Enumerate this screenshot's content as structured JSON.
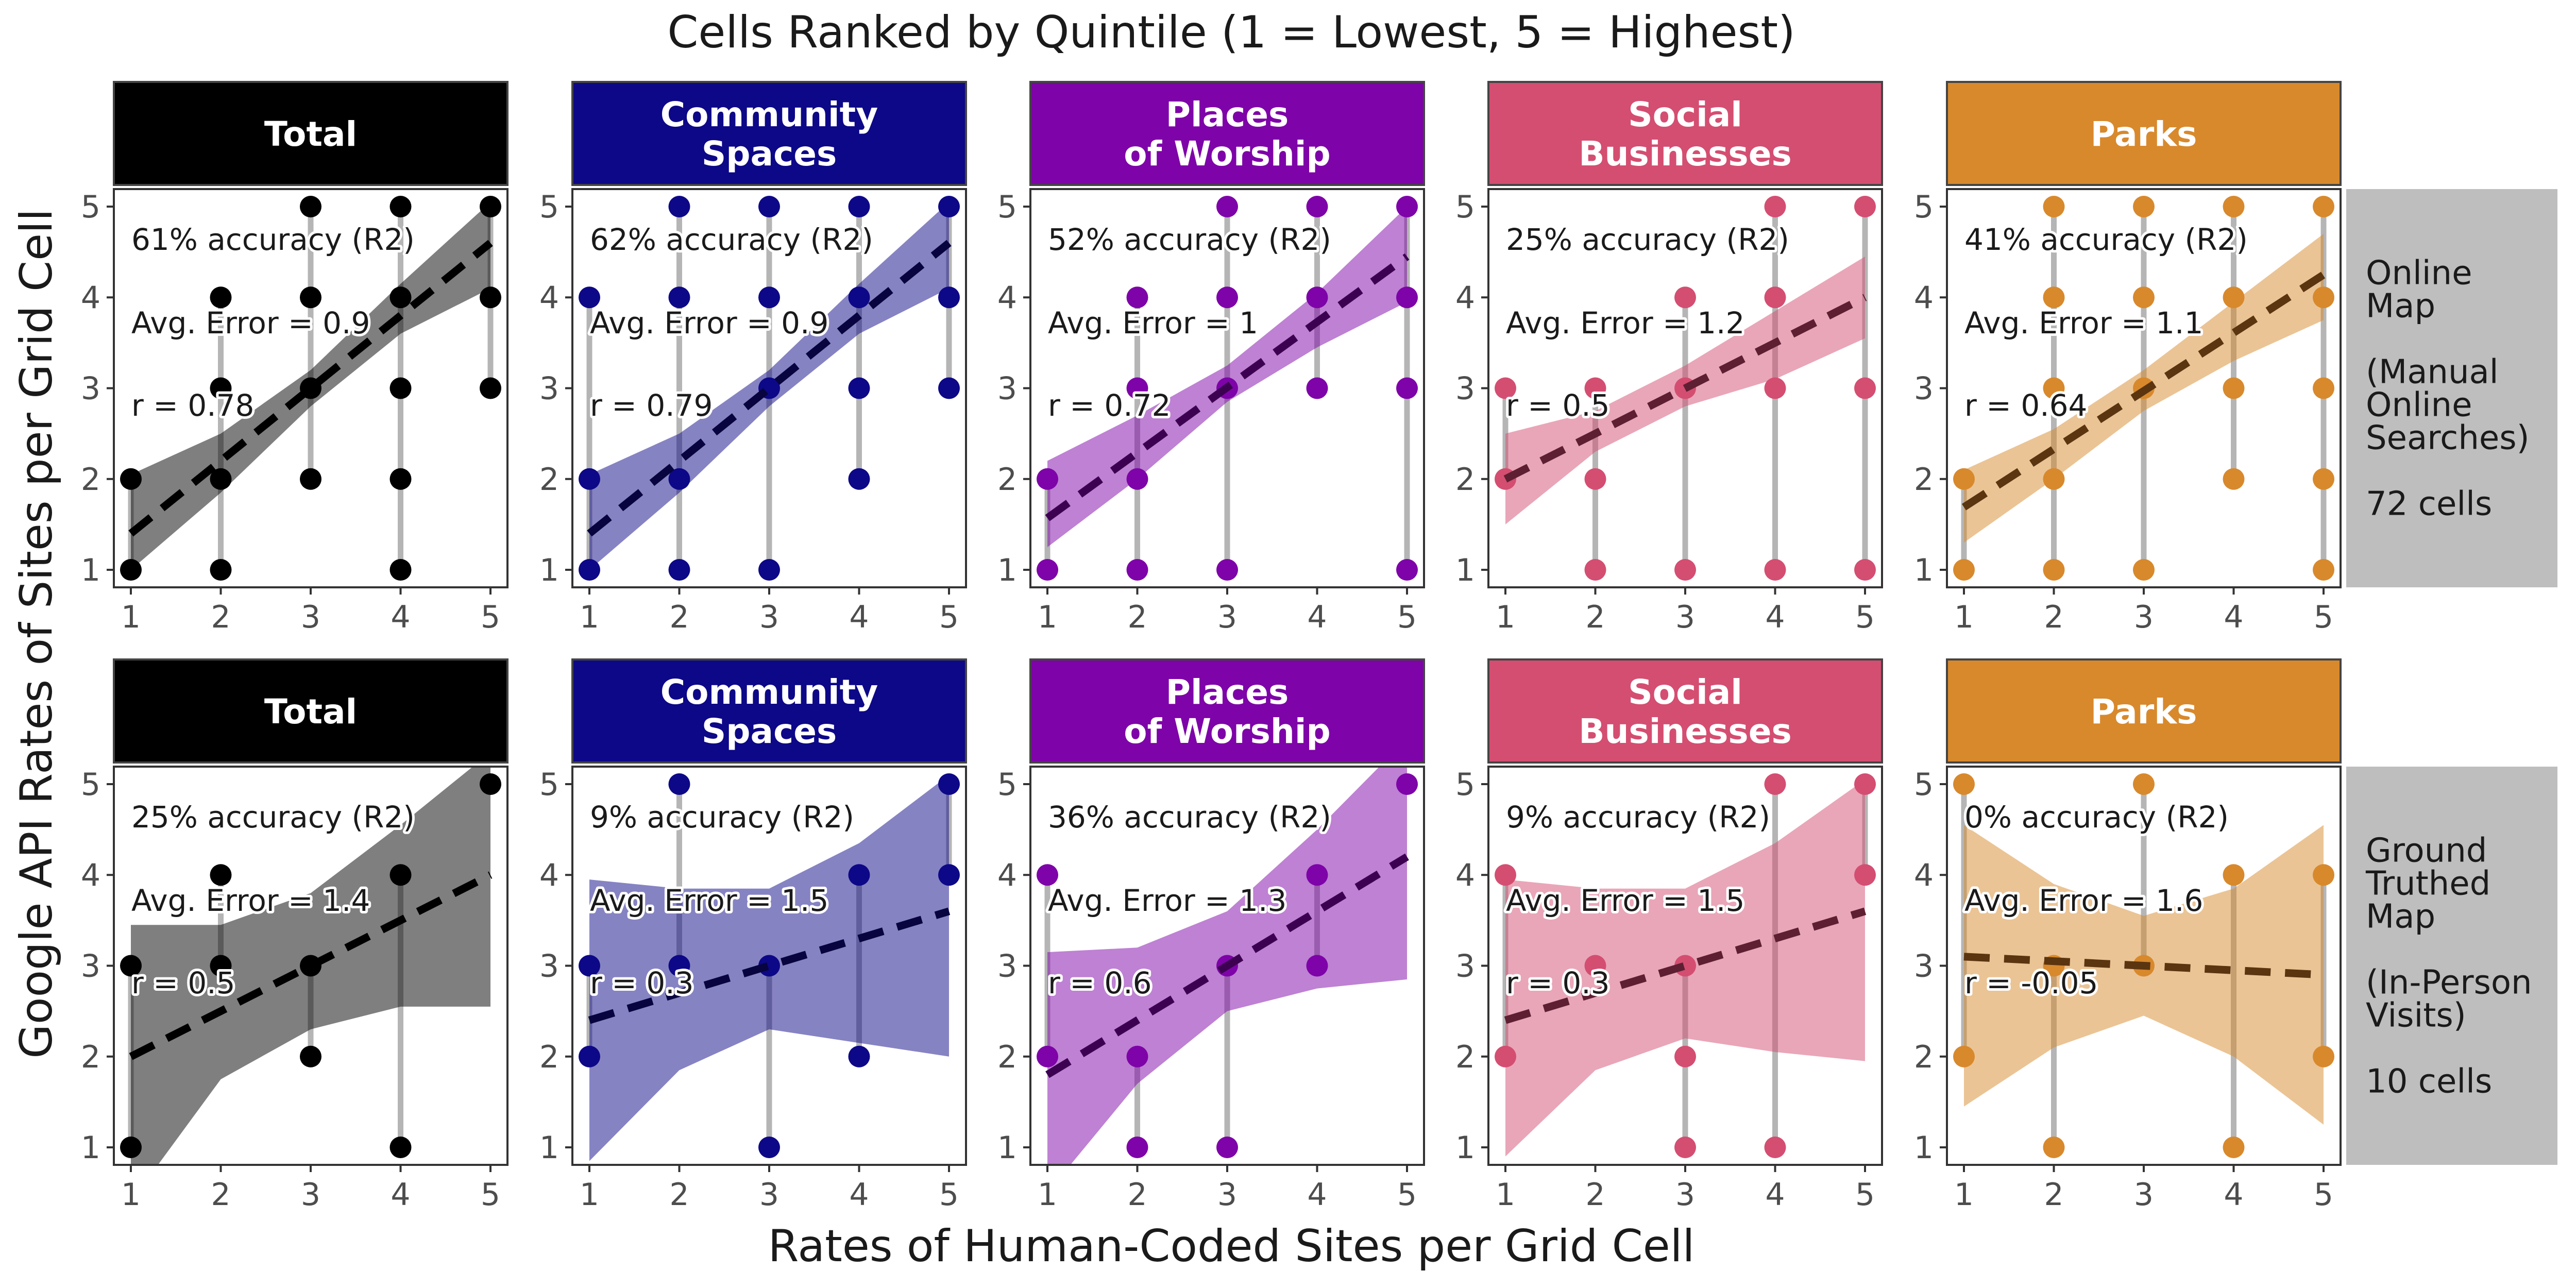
{
  "figure": {
    "title": "Cells Ranked by Quintile (1 = Lowest, 5 = Highest)",
    "xlabel": "Rates of Human-Coded Sites per Grid Cell",
    "ylabel": "Google API Rates of Sites per Grid Cell"
  },
  "colors": {
    "Total": "#000000",
    "Community Spaces": "#0d0887",
    "Places of Worship": "#7e03a8",
    "Social Businesses": "#d44e71",
    "Parks": "#d8892c"
  },
  "columns": [
    {
      "key": "Total",
      "header": [
        "Total"
      ]
    },
    {
      "key": "Community Spaces",
      "header": [
        "Community",
        "Spaces"
      ]
    },
    {
      "key": "Places of Worship",
      "header": [
        "Places",
        "of Worship"
      ]
    },
    {
      "key": "Social Businesses",
      "header": [
        "Social",
        "Businesses"
      ]
    },
    {
      "key": "Parks",
      "header": [
        "Parks"
      ]
    }
  ],
  "rows": [
    {
      "label_lines": [
        "Online",
        "Map",
        "",
        "(Manual",
        "Online",
        "Searches)",
        "",
        "72 cells"
      ]
    },
    {
      "label_lines": [
        "Ground",
        "Truthed",
        "Map",
        "",
        "(In-Person",
        "Visits)",
        "",
        "10 cells"
      ]
    }
  ],
  "chart_data": [
    {
      "type": "scatter",
      "row": 0,
      "col": 0,
      "category": "Total",
      "xlim": [
        1,
        5
      ],
      "ylim": [
        1,
        5
      ],
      "annotations": [
        "61% accuracy (R2)",
        "Avg. Error = 0.9",
        "r = 0.78"
      ],
      "points": [
        [
          1,
          1
        ],
        [
          1,
          2
        ],
        [
          2,
          1
        ],
        [
          2,
          2
        ],
        [
          2,
          3
        ],
        [
          2,
          4
        ],
        [
          3,
          2
        ],
        [
          3,
          3
        ],
        [
          3,
          4
        ],
        [
          3,
          5
        ],
        [
          4,
          1
        ],
        [
          4,
          2
        ],
        [
          4,
          3
        ],
        [
          4,
          4
        ],
        [
          4,
          5
        ],
        [
          5,
          3
        ],
        [
          5,
          4
        ],
        [
          5,
          5
        ]
      ],
      "fit": {
        "intercept": 0.6,
        "slope": 0.8
      },
      "band": {
        "lower": [
          1.0,
          1.85,
          2.8,
          3.6,
          4.1
        ],
        "upper": [
          2.05,
          2.5,
          3.2,
          4.15,
          5.05
        ]
      }
    },
    {
      "type": "scatter",
      "row": 0,
      "col": 1,
      "category": "Community Spaces",
      "xlim": [
        1,
        5
      ],
      "ylim": [
        1,
        5
      ],
      "annotations": [
        "62% accuracy (R2)",
        "Avg. Error = 0.9",
        "r = 0.79"
      ],
      "points": [
        [
          1,
          1
        ],
        [
          1,
          2
        ],
        [
          1,
          4
        ],
        [
          2,
          1
        ],
        [
          2,
          2
        ],
        [
          2,
          4
        ],
        [
          2,
          5
        ],
        [
          3,
          1
        ],
        [
          3,
          3
        ],
        [
          3,
          4
        ],
        [
          3,
          5
        ],
        [
          4,
          2
        ],
        [
          4,
          3
        ],
        [
          4,
          4
        ],
        [
          4,
          5
        ],
        [
          5,
          3
        ],
        [
          5,
          4
        ],
        [
          5,
          5
        ]
      ],
      "fit": {
        "intercept": 0.6,
        "slope": 0.8
      },
      "band": {
        "lower": [
          1.0,
          1.85,
          2.8,
          3.6,
          4.1
        ],
        "upper": [
          2.05,
          2.5,
          3.2,
          4.15,
          5.05
        ]
      }
    },
    {
      "type": "scatter",
      "row": 0,
      "col": 2,
      "category": "Places of Worship",
      "xlim": [
        1,
        5
      ],
      "ylim": [
        1,
        5
      ],
      "annotations": [
        "52% accuracy (R2)",
        "Avg. Error = 1",
        "r = 0.72"
      ],
      "points": [
        [
          1,
          1
        ],
        [
          1,
          2
        ],
        [
          2,
          1
        ],
        [
          2,
          2
        ],
        [
          2,
          3
        ],
        [
          2,
          4
        ],
        [
          3,
          1
        ],
        [
          3,
          3
        ],
        [
          3,
          4
        ],
        [
          3,
          5
        ],
        [
          4,
          3
        ],
        [
          4,
          4
        ],
        [
          4,
          5
        ],
        [
          5,
          1
        ],
        [
          5,
          3
        ],
        [
          5,
          4
        ],
        [
          5,
          5
        ]
      ],
      "fit": {
        "intercept": 0.85,
        "slope": 0.72
      },
      "band": {
        "lower": [
          1.25,
          2.0,
          2.85,
          3.45,
          3.95
        ],
        "upper": [
          2.2,
          2.7,
          3.25,
          4.05,
          5.0
        ]
      }
    },
    {
      "type": "scatter",
      "row": 0,
      "col": 3,
      "category": "Social Businesses",
      "xlim": [
        1,
        5
      ],
      "ylim": [
        1,
        5
      ],
      "annotations": [
        "25% accuracy (R2)",
        "Avg. Error = 1.2",
        "r = 0.5"
      ],
      "points": [
        [
          1,
          2
        ],
        [
          1,
          3
        ],
        [
          2,
          1
        ],
        [
          2,
          2
        ],
        [
          2,
          3
        ],
        [
          3,
          1
        ],
        [
          3,
          3
        ],
        [
          3,
          4
        ],
        [
          4,
          1
        ],
        [
          4,
          3
        ],
        [
          4,
          4
        ],
        [
          4,
          5
        ],
        [
          5,
          1
        ],
        [
          5,
          3
        ],
        [
          5,
          5
        ]
      ],
      "fit": {
        "intercept": 1.5,
        "slope": 0.5
      },
      "band": {
        "lower": [
          1.5,
          2.3,
          2.8,
          3.1,
          3.55
        ],
        "upper": [
          2.5,
          2.75,
          3.25,
          3.85,
          4.45
        ]
      }
    },
    {
      "type": "scatter",
      "row": 0,
      "col": 4,
      "category": "Parks",
      "xlim": [
        1,
        5
      ],
      "ylim": [
        1,
        5
      ],
      "annotations": [
        "41% accuracy (R2)",
        "Avg. Error = 1.1",
        "r = 0.64"
      ],
      "points": [
        [
          1,
          1
        ],
        [
          1,
          2
        ],
        [
          2,
          1
        ],
        [
          2,
          2
        ],
        [
          2,
          3
        ],
        [
          2,
          4
        ],
        [
          2,
          5
        ],
        [
          3,
          1
        ],
        [
          3,
          3
        ],
        [
          3,
          4
        ],
        [
          3,
          5
        ],
        [
          4,
          2
        ],
        [
          4,
          3
        ],
        [
          4,
          4
        ],
        [
          4,
          5
        ],
        [
          5,
          1
        ],
        [
          5,
          2
        ],
        [
          5,
          3
        ],
        [
          5,
          4
        ],
        [
          5,
          5
        ]
      ],
      "fit": {
        "intercept": 1.05,
        "slope": 0.64
      },
      "band": {
        "lower": [
          1.3,
          2.0,
          2.75,
          3.3,
          3.75
        ],
        "upper": [
          2.1,
          2.55,
          3.2,
          3.95,
          4.7
        ]
      }
    },
    {
      "type": "scatter",
      "row": 1,
      "col": 0,
      "category": "Total",
      "xlim": [
        1,
        5
      ],
      "ylim": [
        1,
        5
      ],
      "annotations": [
        "25% accuracy (R2)",
        "Avg. Error = 1.4",
        "r = 0.5"
      ],
      "points": [
        [
          1,
          1
        ],
        [
          1,
          3
        ],
        [
          2,
          3
        ],
        [
          2,
          4
        ],
        [
          3,
          2
        ],
        [
          3,
          3
        ],
        [
          4,
          1
        ],
        [
          4,
          4
        ],
        [
          5,
          5
        ]
      ],
      "fit": {
        "intercept": 1.5,
        "slope": 0.5
      },
      "band": {
        "lower": [
          0.4,
          1.75,
          2.3,
          2.55,
          2.55
        ],
        "upper": [
          3.45,
          3.45,
          3.8,
          4.55,
          5.35
        ]
      }
    },
    {
      "type": "scatter",
      "row": 1,
      "col": 1,
      "category": "Community Spaces",
      "xlim": [
        1,
        5
      ],
      "ylim": [
        1,
        5
      ],
      "annotations": [
        "9% accuracy (R2)",
        "Avg. Error = 1.5",
        "r = 0.3"
      ],
      "points": [
        [
          1,
          2
        ],
        [
          1,
          3
        ],
        [
          2,
          3
        ],
        [
          2,
          5
        ],
        [
          3,
          1
        ],
        [
          3,
          3
        ],
        [
          4,
          2
        ],
        [
          4,
          4
        ],
        [
          5,
          4
        ],
        [
          5,
          5
        ]
      ],
      "fit": {
        "intercept": 2.1,
        "slope": 0.3
      },
      "band": {
        "lower": [
          0.85,
          1.85,
          2.3,
          2.15,
          2.0
        ],
        "upper": [
          3.95,
          3.85,
          3.85,
          4.35,
          5.1
        ]
      }
    },
    {
      "type": "scatter",
      "row": 1,
      "col": 2,
      "category": "Places of Worship",
      "xlim": [
        1,
        5
      ],
      "ylim": [
        1,
        5
      ],
      "annotations": [
        "36% accuracy (R2)",
        "Avg. Error = 1.3",
        "r = 0.6"
      ],
      "points": [
        [
          1,
          2
        ],
        [
          1,
          4
        ],
        [
          2,
          1
        ],
        [
          2,
          2
        ],
        [
          3,
          1
        ],
        [
          3,
          3
        ],
        [
          4,
          3
        ],
        [
          4,
          4
        ],
        [
          5,
          5
        ]
      ],
      "fit": {
        "intercept": 1.2,
        "slope": 0.6
      },
      "band": {
        "lower": [
          0.5,
          1.7,
          2.5,
          2.75,
          2.85
        ],
        "upper": [
          3.15,
          3.2,
          3.6,
          4.5,
          5.5
        ]
      }
    },
    {
      "type": "scatter",
      "row": 1,
      "col": 3,
      "category": "Social Businesses",
      "xlim": [
        1,
        5
      ],
      "ylim": [
        1,
        5
      ],
      "annotations": [
        "9% accuracy (R2)",
        "Avg. Error = 1.5",
        "r = 0.3"
      ],
      "points": [
        [
          1,
          2
        ],
        [
          1,
          4
        ],
        [
          2,
          3
        ],
        [
          3,
          1
        ],
        [
          3,
          2
        ],
        [
          3,
          3
        ],
        [
          4,
          1
        ],
        [
          4,
          5
        ],
        [
          5,
          4
        ],
        [
          5,
          5
        ]
      ],
      "fit": {
        "intercept": 2.1,
        "slope": 0.3
      },
      "band": {
        "lower": [
          0.9,
          1.85,
          2.2,
          2.05,
          1.95
        ],
        "upper": [
          3.95,
          3.85,
          3.85,
          4.35,
          5.05
        ]
      }
    },
    {
      "type": "scatter",
      "row": 1,
      "col": 4,
      "category": "Parks",
      "xlim": [
        1,
        5
      ],
      "ylim": [
        1,
        5
      ],
      "annotations": [
        "0% accuracy (R2)",
        "Avg. Error = 1.6",
        "r = -0.05"
      ],
      "points": [
        [
          1,
          2
        ],
        [
          1,
          5
        ],
        [
          2,
          1
        ],
        [
          2,
          3
        ],
        [
          3,
          3
        ],
        [
          3,
          5
        ],
        [
          4,
          1
        ],
        [
          4,
          4
        ],
        [
          5,
          2
        ],
        [
          5,
          4
        ]
      ],
      "fit": {
        "intercept": 3.15,
        "slope": -0.05
      },
      "band": {
        "lower": [
          1.45,
          2.1,
          2.45,
          2.0,
          1.25
        ],
        "upper": [
          4.55,
          3.9,
          3.55,
          3.85,
          4.55
        ]
      }
    }
  ]
}
